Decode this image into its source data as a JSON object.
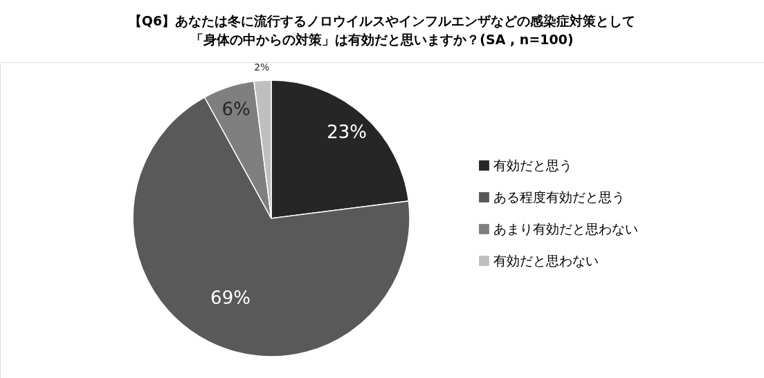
{
  "chart_data": {
    "type": "pie",
    "title": "【Q6】あなたは冬に流行するノロウイルスやインフルエンザなどの感染症対策として",
    "subtitle": "「身体の中からの対策」は有効だと思いますか？(SA , n=100)",
    "categories": [
      "有効だと思う",
      "ある程度有効だと思う",
      "あまり有効だと思わない",
      "有効だと思わない"
    ],
    "values": [
      23,
      69,
      6,
      2
    ],
    "colors": [
      "#262626",
      "#595959",
      "#7f7f7f",
      "#bfbfbf"
    ],
    "value_labels": [
      "23%",
      "69%",
      "6%",
      "2%"
    ],
    "legend": "right"
  }
}
